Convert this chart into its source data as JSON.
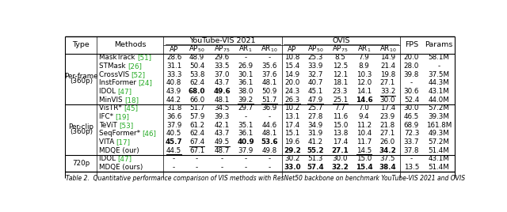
{
  "title": "Table 2.  Quantitative performance comparison of VIS methods with ResNet50 backbone on benchmark YouTube-VIS 2021 and OVIS",
  "rows": [
    {
      "type": "Per-frame\n(360p)",
      "group": 0,
      "method": "MaskTrack",
      "ref": "[51]",
      "yt_ap": "28.6",
      "yt_ap50": "48.9",
      "yt_ap75": "29.6",
      "yt_ar1": "-",
      "yt_ar10": "-",
      "ov_ap": "10.8",
      "ov_ap50": "25.3",
      "ov_ap75": "8.5",
      "ov_ar1": "7.9",
      "ov_ar10": "14.9",
      "fps": "20.0",
      "params": "58.1M",
      "bold": [],
      "underline": []
    },
    {
      "type": "",
      "group": 0,
      "method": "STMask",
      "ref": "[26]",
      "yt_ap": "31.1",
      "yt_ap50": "50.4",
      "yt_ap75": "33.5",
      "yt_ar1": "26.9",
      "yt_ar10": "35.6",
      "ov_ap": "15.4",
      "ov_ap50": "33.9",
      "ov_ap75": "12.5",
      "ov_ar1": "8.9",
      "ov_ar10": "21.4",
      "fps": "28.0",
      "params": "-",
      "bold": [],
      "underline": []
    },
    {
      "type": "",
      "group": 0,
      "method": "CrossVIS",
      "ref": "[52]",
      "yt_ap": "33.3",
      "yt_ap50": "53.8",
      "yt_ap75": "37.0",
      "yt_ar1": "30.1",
      "yt_ar10": "37.6",
      "ov_ap": "14.9",
      "ov_ap50": "32.7",
      "ov_ap75": "12.1",
      "ov_ar1": "10.3",
      "ov_ar10": "19.8",
      "fps": "39.8",
      "params": "37.5M",
      "bold": [],
      "underline": []
    },
    {
      "type": "",
      "group": 0,
      "method": "InstFormer",
      "ref": "[24]",
      "yt_ap": "40.8",
      "yt_ap50": "62.4",
      "yt_ap75": "43.7",
      "yt_ar1": "36.1",
      "yt_ar10": "48.1",
      "ov_ap": "20.0",
      "ov_ap50": "40.7",
      "ov_ap75": "18.1",
      "ov_ar1": "12.0",
      "ov_ar10": "27.1",
      "fps": "-",
      "params": "44.3M",
      "bold": [],
      "underline": []
    },
    {
      "type": "",
      "group": 0,
      "method": "IDOL",
      "ref": "[47]",
      "yt_ap": "43.9",
      "yt_ap50": "68.0",
      "yt_ap75": "49.6",
      "yt_ar1": "38.0",
      "yt_ar10": "50.9",
      "ov_ap": "24.3",
      "ov_ap50": "45.1",
      "ov_ap75": "23.3",
      "ov_ar1": "14.1",
      "ov_ar10": "33.2",
      "fps": "30.6",
      "params": "43.1M",
      "bold": [
        "yt_ap50",
        "yt_ap75"
      ],
      "underline": [
        "ov_ar10"
      ]
    },
    {
      "type": "",
      "group": 0,
      "method": "MinVIS",
      "ref": "[18]",
      "yt_ap": "44.2",
      "yt_ap50": "66.0",
      "yt_ap75": "48.1",
      "yt_ar1": "39.2",
      "yt_ar10": "51.7",
      "ov_ap": "26.3",
      "ov_ap50": "47.9",
      "ov_ap75": "25.1",
      "ov_ar1": "14.6",
      "ov_ar10": "30.0",
      "fps": "52.4",
      "params": "44.0M",
      "bold": [
        "ov_ar1"
      ],
      "underline": [
        "yt_ar1",
        "yt_ar10",
        "ov_ap",
        "ov_ap50",
        "ov_ap75"
      ]
    },
    {
      "type": "Per-clip\n(360p)",
      "group": 1,
      "method": "VisTR*",
      "ref": "[45]",
      "yt_ap": "31.8",
      "yt_ap50": "51.7",
      "yt_ap75": "34.5",
      "yt_ar1": "29.7",
      "yt_ar10": "36.9",
      "ov_ap": "10.2",
      "ov_ap50": "25.7",
      "ov_ap75": "7.7",
      "ov_ar1": "7.0",
      "ov_ar10": "17.4",
      "fps": "30.0",
      "params": "57.2M",
      "bold": [],
      "underline": []
    },
    {
      "type": "",
      "group": 1,
      "method": "IFC*",
      "ref": "[19]",
      "yt_ap": "36.6",
      "yt_ap50": "57.9",
      "yt_ap75": "39.3",
      "yt_ar1": "-",
      "yt_ar10": "-",
      "ov_ap": "13.1",
      "ov_ap50": "27.8",
      "ov_ap75": "11.6",
      "ov_ar1": "9.4",
      "ov_ar10": "23.9",
      "fps": "46.5",
      "params": "39.3M",
      "bold": [],
      "underline": []
    },
    {
      "type": "",
      "group": 1,
      "method": "TeViT",
      "ref": "[53]",
      "yt_ap": "37.9",
      "yt_ap50": "61.2",
      "yt_ap75": "42.1",
      "yt_ar1": "35.1",
      "yt_ar10": "44.6",
      "ov_ap": "17.4",
      "ov_ap50": "34.9",
      "ov_ap75": "15.0",
      "ov_ar1": "11.2",
      "ov_ar10": "21.8",
      "fps": "68.9",
      "params": "161.8M",
      "bold": [],
      "underline": []
    },
    {
      "type": "",
      "group": 1,
      "method": "SeqFormer*",
      "ref": "[46]",
      "yt_ap": "40.5",
      "yt_ap50": "62.4",
      "yt_ap75": "43.7",
      "yt_ar1": "36.1",
      "yt_ar10": "48.1",
      "ov_ap": "15.1",
      "ov_ap50": "31.9",
      "ov_ap75": "13.8",
      "ov_ar1": "10.4",
      "ov_ar10": "27.1",
      "fps": "72.3",
      "params": "49.3M",
      "bold": [],
      "underline": []
    },
    {
      "type": "",
      "group": 1,
      "method": "VITA",
      "ref": "[17]",
      "yt_ap": "45.7",
      "yt_ap50": "67.4",
      "yt_ap75": "49.5",
      "yt_ar1": "40.9",
      "yt_ar10": "53.6",
      "ov_ap": "19.6",
      "ov_ap50": "41.2",
      "ov_ap75": "17.4",
      "ov_ar1": "11.7",
      "ov_ar10": "26.0",
      "fps": "33.7",
      "params": "57.2M",
      "bold": [
        "yt_ap",
        "yt_ar1",
        "yt_ar10"
      ],
      "underline": [
        "yt_ap50",
        "yt_ap75"
      ]
    },
    {
      "type": "",
      "group": 1,
      "method": "MDQE (our)",
      "ref": "",
      "yt_ap": "44.5",
      "yt_ap50": "67.1",
      "yt_ap75": "48.7",
      "yt_ar1": "37.9",
      "yt_ar10": "49.8",
      "ov_ap": "29.2",
      "ov_ap50": "55.2",
      "ov_ap75": "27.1",
      "ov_ar1": "14.5",
      "ov_ar10": "34.2",
      "fps": "37.8",
      "params": "51.4M",
      "bold": [
        "ov_ap",
        "ov_ap50",
        "ov_ap75",
        "ov_ar10"
      ],
      "underline": [
        "yt_ap",
        "ov_ar1"
      ]
    },
    {
      "type": "720p",
      "group": 2,
      "method": "IDOL",
      "ref": "[47]",
      "yt_ap": "-",
      "yt_ap50": "-",
      "yt_ap75": "-",
      "yt_ar1": "-",
      "yt_ar10": "-",
      "ov_ap": "30.2",
      "ov_ap50": "51.3",
      "ov_ap75": "30.0",
      "ov_ar1": "15.0",
      "ov_ar10": "37.5",
      "fps": "-",
      "params": "43.1M",
      "bold": [],
      "underline": []
    },
    {
      "type": "",
      "group": 2,
      "method": "MDQE (ours)",
      "ref": "",
      "yt_ap": "-",
      "yt_ap50": "-",
      "yt_ap75": "-",
      "yt_ar1": "-",
      "yt_ar10": "-",
      "ov_ap": "33.0",
      "ov_ap50": "57.4",
      "ov_ap75": "32.2",
      "ov_ar1": "15.4",
      "ov_ar10": "38.4",
      "fps": "13.5",
      "params": "51.4M",
      "bold": [
        "ov_ap",
        "ov_ap50",
        "ov_ap75",
        "ov_ar1",
        "ov_ar10"
      ],
      "underline": []
    }
  ],
  "col_keys": [
    "yt_ap",
    "yt_ap50",
    "yt_ap75",
    "yt_ar1",
    "yt_ar10",
    "ov_ap",
    "ov_ap50",
    "ov_ap75",
    "ov_ar1",
    "ov_ar10",
    "fps",
    "params"
  ],
  "green_color": "#22aa22",
  "background_color": "#ffffff"
}
